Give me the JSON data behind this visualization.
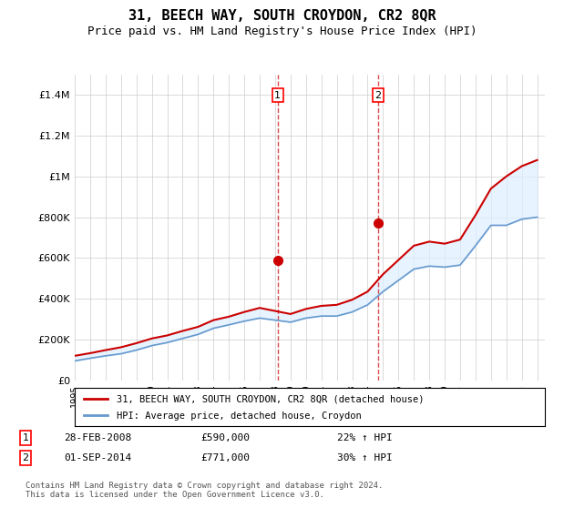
{
  "title": "31, BEECH WAY, SOUTH CROYDON, CR2 8QR",
  "subtitle": "Price paid vs. HM Land Registry's House Price Index (HPI)",
  "ylabel": "",
  "background_color": "#ffffff",
  "plot_bg_color": "#ffffff",
  "grid_color": "#cccccc",
  "line1_color": "#cc0000",
  "line2_color": "#6699cc",
  "shade_color": "#ddeeff",
  "years": [
    1995,
    1996,
    1997,
    1998,
    1999,
    2000,
    2001,
    2002,
    2003,
    2004,
    2005,
    2006,
    2007,
    2008,
    2009,
    2010,
    2011,
    2012,
    2013,
    2014,
    2015,
    2016,
    2017,
    2018,
    2019,
    2020,
    2021,
    2022,
    2023,
    2024,
    2025
  ],
  "hpi_values": [
    95000,
    108000,
    120000,
    130000,
    148000,
    170000,
    185000,
    205000,
    225000,
    255000,
    272000,
    290000,
    305000,
    295000,
    285000,
    305000,
    315000,
    315000,
    335000,
    370000,
    435000,
    490000,
    545000,
    560000,
    555000,
    565000,
    660000,
    760000,
    760000,
    790000,
    800000
  ],
  "property_values": [
    120000,
    133000,
    148000,
    162000,
    182000,
    205000,
    220000,
    242000,
    262000,
    295000,
    312000,
    335000,
    355000,
    340000,
    325000,
    350000,
    365000,
    370000,
    395000,
    435000,
    520000,
    590000,
    660000,
    680000,
    670000,
    690000,
    810000,
    940000,
    1000000,
    1050000,
    1080000
  ],
  "sale1_year": 2008.17,
  "sale1_value": 590000,
  "sale2_year": 2014.67,
  "sale2_value": 771000,
  "ylim": [
    0,
    1500000
  ],
  "yticks": [
    0,
    200000,
    400000,
    600000,
    800000,
    1000000,
    1200000,
    1400000
  ],
  "legend1_label": "31, BEECH WAY, SOUTH CROYDON, CR2 8QR (detached house)",
  "legend2_label": "HPI: Average price, detached house, Croydon",
  "note1_label": "1",
  "note1_date": "28-FEB-2008",
  "note1_price": "£590,000",
  "note1_hpi": "22% ↑ HPI",
  "note2_label": "2",
  "note2_date": "01-SEP-2014",
  "note2_price": "£771,000",
  "note2_hpi": "30% ↑ HPI",
  "footer": "Contains HM Land Registry data © Crown copyright and database right 2024.\nThis data is licensed under the Open Government Licence v3.0."
}
